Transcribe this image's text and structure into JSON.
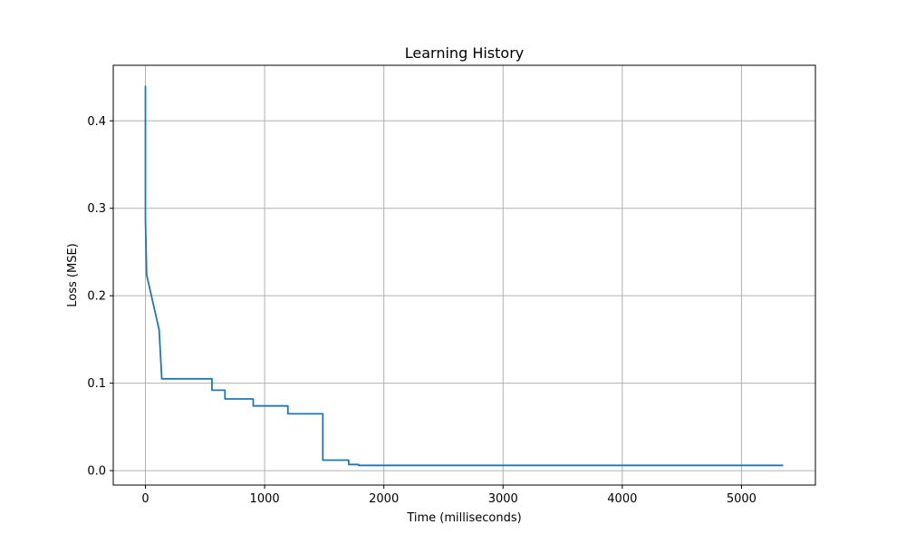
{
  "chart_data": {
    "type": "line",
    "title": "Learning History",
    "xlabel": "Time (milliseconds)",
    "ylabel": "Loss (MSE)",
    "xlim": [
      -270,
      5620
    ],
    "ylim": [
      -0.0165,
      0.4635
    ],
    "xticks": [
      0,
      1000,
      2000,
      3000,
      4000,
      5000
    ],
    "xtick_labels": [
      "0",
      "1000",
      "2000",
      "3000",
      "4000",
      "5000"
    ],
    "yticks": [
      0.0,
      0.1,
      0.2,
      0.3,
      0.4
    ],
    "ytick_labels": [
      "0.0",
      "0.1",
      "0.2",
      "0.3",
      "0.4"
    ],
    "grid": true,
    "colors": {
      "series": "#1f77b4"
    },
    "series": [
      {
        "x": [
          0,
          0,
          0,
          10,
          115,
          137,
          558,
          558,
          667,
          667,
          904,
          904,
          1195,
          1195,
          1488,
          1488,
          1705,
          1705,
          1788,
          1788,
          1900,
          5350
        ],
        "y": [
          0.44,
          0.287,
          0.287,
          0.224,
          0.161,
          0.105,
          0.105,
          0.092,
          0.092,
          0.082,
          0.082,
          0.074,
          0.074,
          0.065,
          0.065,
          0.012,
          0.012,
          0.007,
          0.007,
          0.006,
          0.006,
          0.006
        ]
      }
    ]
  }
}
